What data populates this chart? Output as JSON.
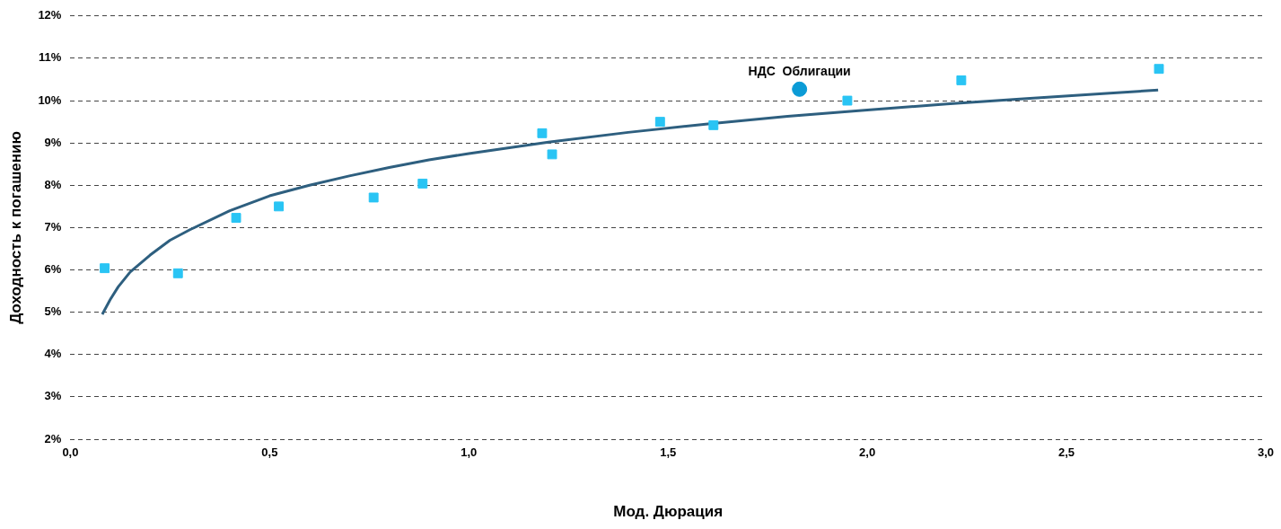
{
  "chart_data": {
    "type": "scatter",
    "xlabel": "Мод. Дюрация",
    "ylabel": "Доходность к погашению",
    "xlim": [
      0,
      3
    ],
    "ylim": [
      2,
      12
    ],
    "xticks": [
      {
        "value": 0,
        "label": "0,0"
      },
      {
        "value": 0.5,
        "label": "0,5"
      },
      {
        "value": 1,
        "label": "1,0"
      },
      {
        "value": 1.5,
        "label": "1,5"
      },
      {
        "value": 2,
        "label": "2,0"
      },
      {
        "value": 2.5,
        "label": "2,5"
      },
      {
        "value": 3,
        "label": "3,0"
      }
    ],
    "yticks": [
      {
        "value": 2,
        "label": "2%"
      },
      {
        "value": 3,
        "label": "3%"
      },
      {
        "value": 4,
        "label": "4%"
      },
      {
        "value": 5,
        "label": "5%"
      },
      {
        "value": 6,
        "label": "6%"
      },
      {
        "value": 7,
        "label": "7%"
      },
      {
        "value": 8,
        "label": "8%"
      },
      {
        "value": 9,
        "label": "9%"
      },
      {
        "value": 10,
        "label": "10%"
      },
      {
        "value": 11,
        "label": "11%"
      },
      {
        "value": 12,
        "label": "12%"
      }
    ],
    "grid": "y",
    "legend": false,
    "series": [
      {
        "type": "line",
        "color": "#2e5f7f",
        "marker": "none",
        "line_style": "solid",
        "x": [
          0.08,
          0.1,
          0.12,
          0.15,
          0.2,
          0.25,
          0.3,
          0.4,
          0.5,
          0.6,
          0.7,
          0.8,
          0.9,
          1.0,
          1.2,
          1.4,
          1.6,
          1.8,
          2.0,
          2.2,
          2.4,
          2.6,
          2.73
        ],
        "values": [
          4.95,
          5.3,
          5.6,
          5.95,
          6.35,
          6.7,
          6.95,
          7.4,
          7.75,
          8.0,
          8.22,
          8.42,
          8.6,
          8.75,
          9.02,
          9.25,
          9.45,
          9.63,
          9.78,
          9.92,
          10.05,
          10.17,
          10.25
        ]
      },
      {
        "color": "#29c4f4",
        "marker": "square",
        "x": [
          0.086,
          0.27,
          0.416,
          0.523,
          0.761,
          0.884,
          1.184,
          1.209,
          1.48,
          1.614,
          1.95,
          2.236,
          2.732
        ],
        "values": [
          6.04,
          5.92,
          7.23,
          7.5,
          7.71,
          8.04,
          9.23,
          8.73,
          9.5,
          9.42,
          10.0,
          10.48,
          10.75
        ]
      },
      {
        "name": "НДС  Облигации",
        "color": "#0b9bd6",
        "marker": "circle",
        "x": [
          1.83
        ],
        "values": [
          10.27
        ]
      }
    ]
  }
}
